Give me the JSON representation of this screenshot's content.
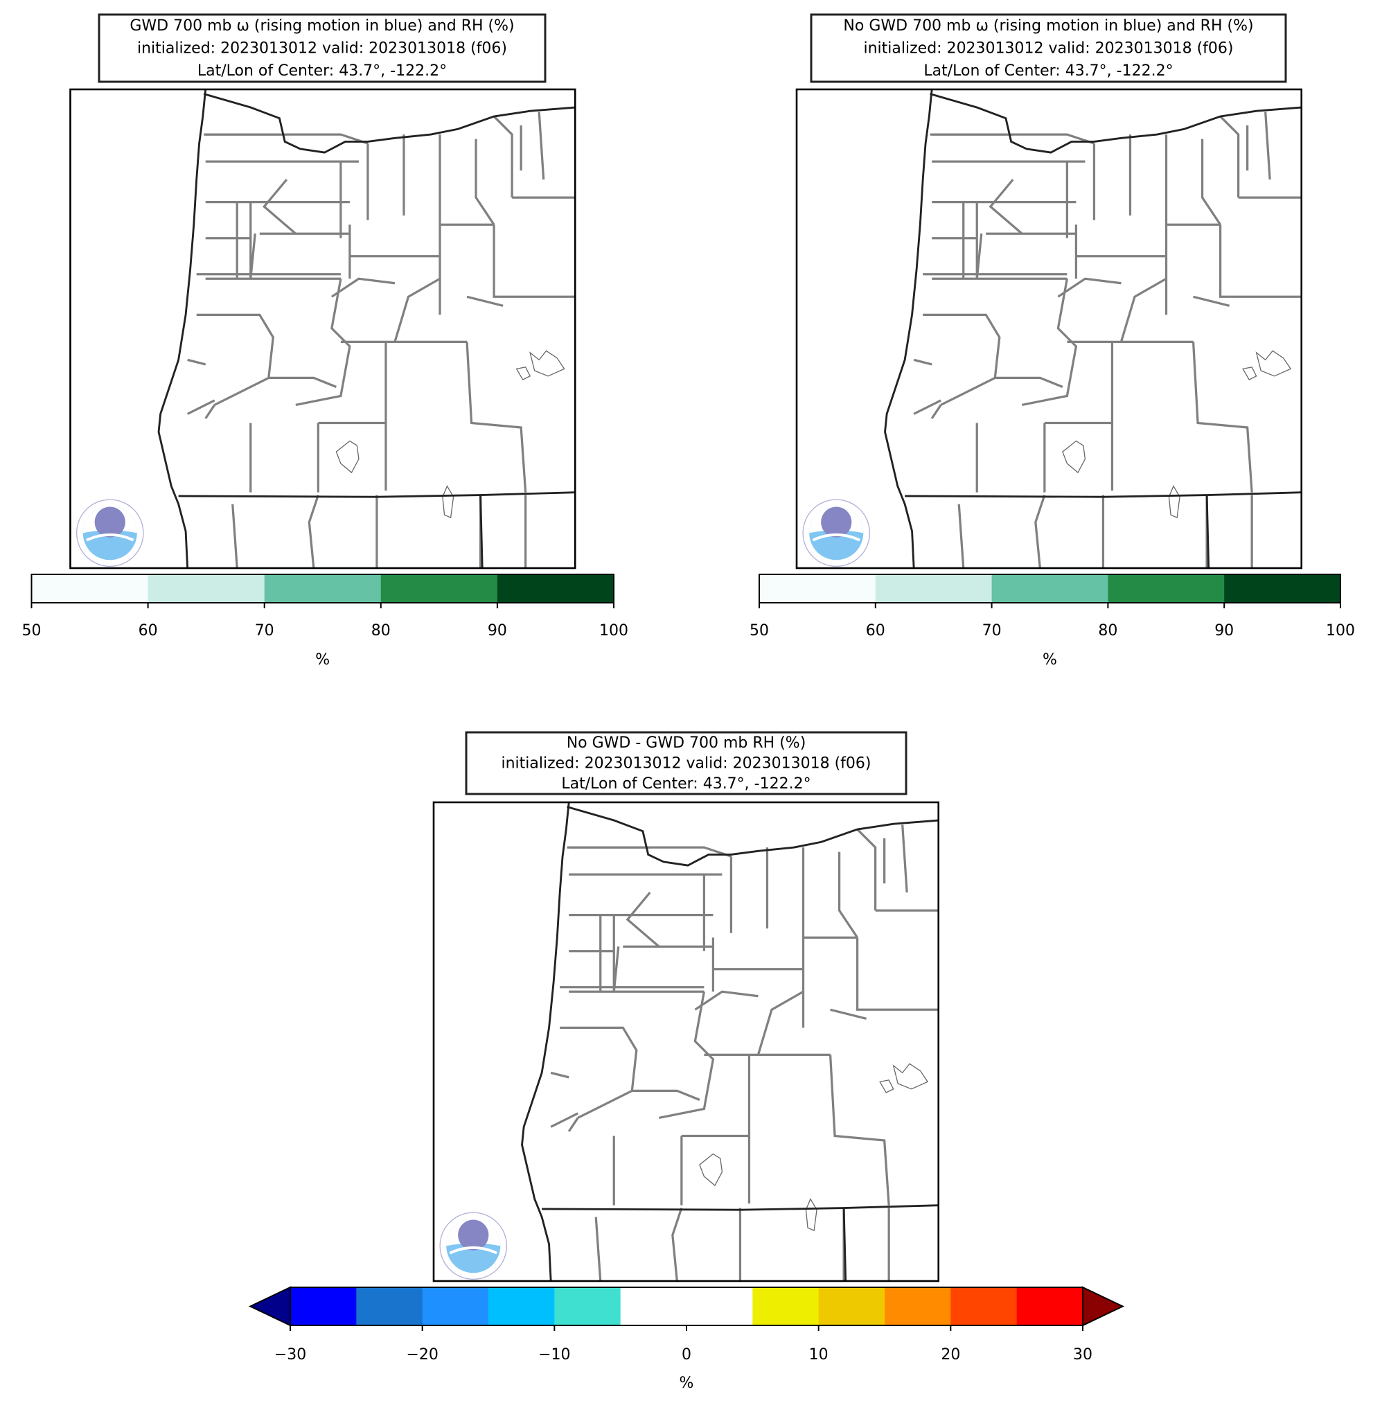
{
  "panels": [
    {
      "title": [
        "GWD 700 mb ω (rising motion in blue) and RH (%)",
        "initialized: 2023013012 valid: 2023013018 (f06)",
        "Lat/Lon of Center: 43.7°, -122.2°"
      ],
      "colorbar": {
        "levels": [
          50,
          60,
          70,
          80,
          90,
          100
        ],
        "colors": [
          "#f7fcfd",
          "#ccece6",
          "#66c2a4",
          "#238b45",
          "#00441b"
        ],
        "ticks": [
          50,
          60,
          70,
          80,
          90,
          100
        ],
        "label": "%"
      }
    },
    {
      "title": [
        "No GWD 700 mb ω (rising motion in blue) and RH (%)",
        "initialized: 2023013012 valid: 2023013018 (f06)",
        "Lat/Lon of Center: 43.7°, -122.2°"
      ],
      "colorbar": {
        "levels": [
          50,
          60,
          70,
          80,
          90,
          100
        ],
        "colors": [
          "#f7fcfd",
          "#ccece6",
          "#66c2a4",
          "#238b45",
          "#00441b"
        ],
        "ticks": [
          50,
          60,
          70,
          80,
          90,
          100
        ],
        "label": "%"
      }
    },
    {
      "title": [
        "No GWD - GWD 700 mb RH (%)",
        "initialized: 2023013012 valid: 2023013018 (f06)",
        "Lat/Lon of Center: 43.7°, -122.2°"
      ],
      "colorbar": {
        "levels": [
          -30,
          -25,
          -20,
          -15,
          -10,
          -5,
          5,
          10,
          15,
          20,
          25,
          30
        ],
        "colors": [
          "#0000ff",
          "#1874cd",
          "#1e90ff",
          "#00bfff",
          "#40e0d0",
          "#ffffff",
          "#eeee00",
          "#eec900",
          "#ff8c00",
          "#ff4500",
          "#ff0000"
        ],
        "under": "#00008b",
        "over": "#8b0000",
        "ticks": [
          {
            "value": -30,
            "label": "−30"
          },
          {
            "value": -20,
            "label": "−20"
          },
          {
            "value": -10,
            "label": "−10"
          },
          0,
          10,
          20,
          30
        ],
        "label": "%"
      }
    }
  ]
}
